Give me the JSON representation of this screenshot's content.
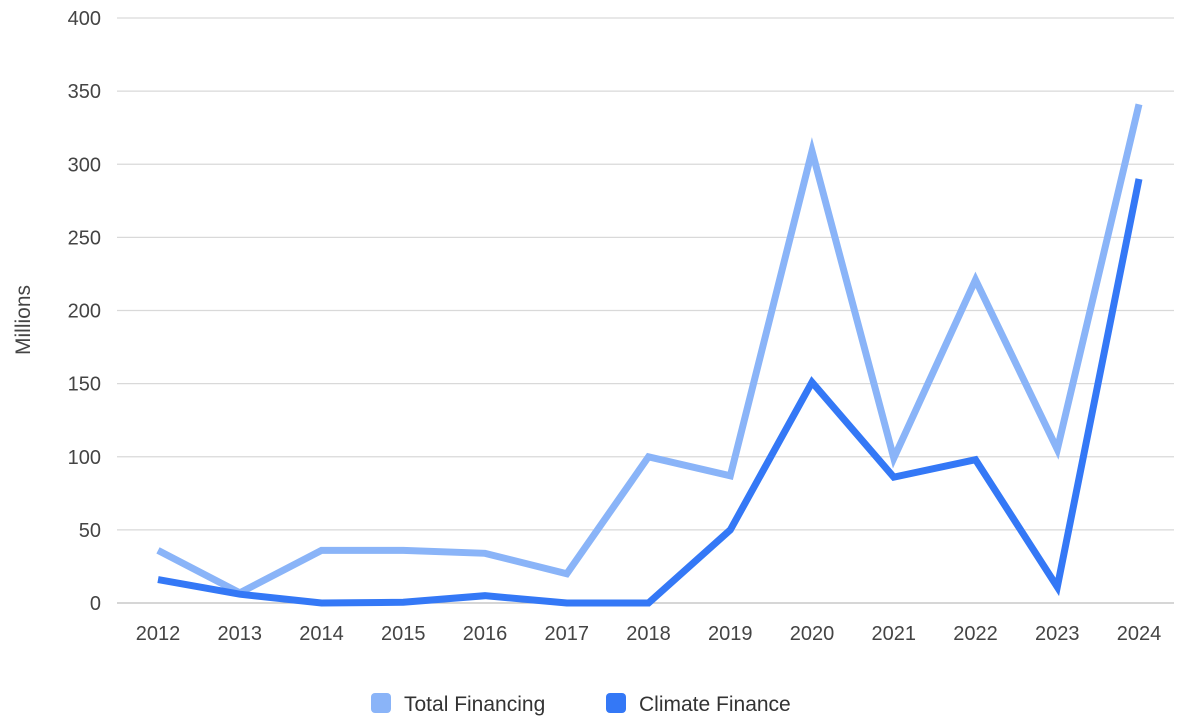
{
  "chart_data": {
    "type": "line",
    "title": "",
    "xlabel": "",
    "ylabel": "Millions",
    "ylim": [
      0,
      400
    ],
    "yticks": [
      0,
      50,
      100,
      150,
      200,
      250,
      300,
      350,
      400
    ],
    "grid": true,
    "legend_position": "bottom",
    "categories": [
      "2012",
      "2013",
      "2014",
      "2015",
      "2016",
      "2017",
      "2018",
      "2019",
      "2020",
      "2021",
      "2022",
      "2023",
      "2024"
    ],
    "series": [
      {
        "name": "Total Financing",
        "color": "#8ab4f8",
        "values": [
          36,
          7,
          36,
          36,
          34,
          20,
          100,
          87,
          309,
          99,
          221,
          105,
          341
        ]
      },
      {
        "name": "Climate Finance",
        "color": "#3478f6",
        "values": [
          16,
          6,
          0,
          0.5,
          5,
          0,
          0,
          50,
          151,
          86,
          98,
          11,
          290
        ]
      }
    ]
  }
}
